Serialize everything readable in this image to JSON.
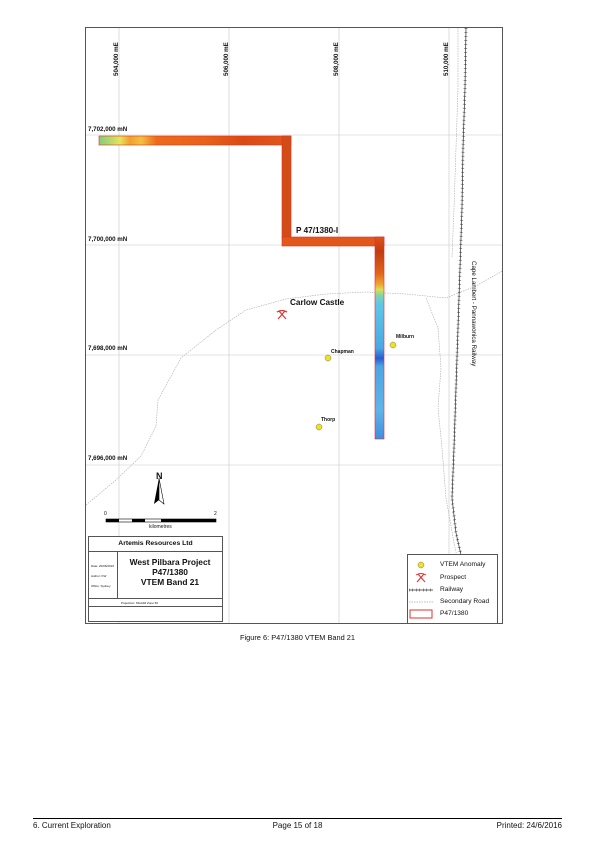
{
  "map": {
    "eastings": [
      "504,000 mE",
      "506,000 mE",
      "508,000 mE",
      "510,000 mE"
    ],
    "northings": [
      "7,702,000 mN",
      "7,700,000 mN",
      "7,698,000 mN",
      "7,696,000 mN"
    ],
    "tenement_label": "P 47/1380-I",
    "place_label": "Carlow Castle",
    "anomalies": [
      "Chapman",
      "Milburn",
      "Thorp"
    ],
    "railway_label": "Cape Lambert - Pannawonica Railway",
    "north_letter": "N",
    "scale": {
      "start": "0",
      "end": "2",
      "unit": "kilometres"
    }
  },
  "title_block": {
    "company": "Artemis Resources Ltd",
    "title_lines": [
      "West Pilbara Project",
      "P47/1380",
      "VTEM Band 21"
    ],
    "meta": [
      "Date: 20/06/2016",
      "Author: KW",
      "Office: Sydney"
    ],
    "projection": "Projection: MGA94 Zone 50"
  },
  "legend": {
    "items": [
      "VTEM Anomaly",
      "Prospect",
      "Railway",
      "Secondary Road",
      "P47/1380"
    ]
  },
  "caption": "Figure 6: P47/1380 VTEM Band 21",
  "footer": {
    "left": "6. Current Exploration",
    "center": "Page 15 of 18",
    "right": "Printed: 24/6/2016"
  },
  "colors": {
    "tenement_outline": "#e03030",
    "anomaly": "#f2e21b",
    "prospect": "#e03030",
    "grid": "#c8c8c8",
    "road": "#a9a9a9"
  }
}
